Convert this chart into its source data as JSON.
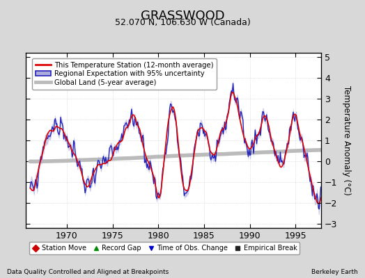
{
  "title": "GRASSWOOD",
  "subtitle": "52.070 N, 106.630 W (Canada)",
  "ylabel": "Temperature Anomaly (°C)",
  "xlabel_notes": "Data Quality Controlled and Aligned at Breakpoints",
  "xlabel_credit": "Berkeley Earth",
  "ylim": [
    -3.2,
    5.2
  ],
  "xlim": [
    1965.5,
    1997.8
  ],
  "yticks_left": [
    -3,
    -2,
    -1,
    0,
    1,
    2,
    3,
    4,
    5
  ],
  "yticks_right": [
    -3,
    -2,
    -1,
    0,
    1,
    2,
    3,
    4,
    5
  ],
  "xticks": [
    1970,
    1975,
    1980,
    1985,
    1990,
    1995
  ],
  "fig_bg_color": "#d8d8d8",
  "plot_bg_color": "#ffffff",
  "legend1_items": [
    {
      "label": "This Temperature Station (12-month average)",
      "color": "#dd0000"
    },
    {
      "label": "Regional Expectation with 95% uncertainty",
      "color": "#3333cc"
    },
    {
      "label": "Global Land (5-year average)",
      "color": "#aaaaaa"
    }
  ],
  "legend2_items": [
    {
      "label": "Station Move",
      "color": "#cc0000",
      "marker": "D"
    },
    {
      "label": "Record Gap",
      "color": "#008800",
      "marker": "^"
    },
    {
      "label": "Time of Obs. Change",
      "color": "#0000cc",
      "marker": "v"
    },
    {
      "label": "Empirical Break",
      "color": "#222222",
      "marker": "s"
    }
  ]
}
